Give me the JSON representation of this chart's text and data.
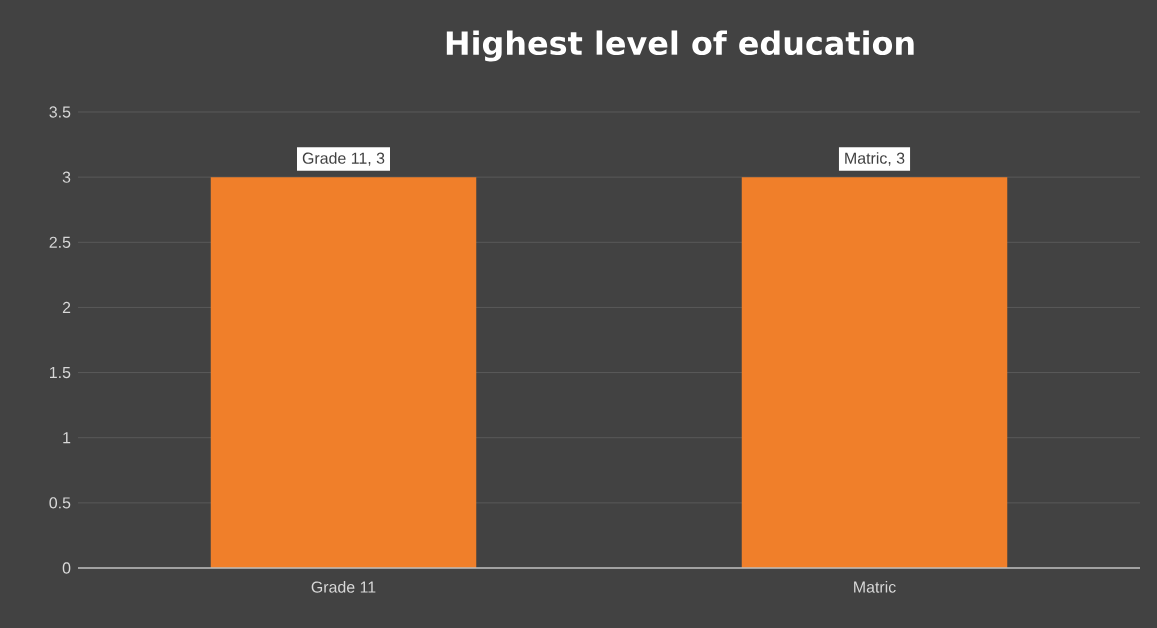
{
  "chart_data": {
    "type": "bar",
    "title": "Highest level of education",
    "categories": [
      "Grade 11",
      "Matric"
    ],
    "values": [
      3,
      3
    ],
    "color": "#f07f2a",
    "value_labels": [
      "Grade 11, 3",
      "Matric, 3"
    ],
    "ylim": [
      0,
      3.5
    ],
    "yticks": [
      0,
      0.5,
      1,
      1.5,
      2,
      2.5,
      3,
      3.5
    ],
    "grid": "y"
  }
}
